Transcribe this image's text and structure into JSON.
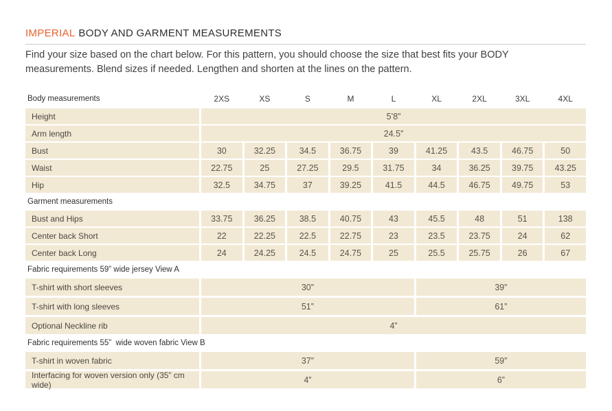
{
  "page": {
    "brand": "IMPERIAL",
    "title": "BODY AND GARMENT MEASUREMENTS",
    "subtitle": [
      "Find your size based on the chart below. For this pattern, you should choose the size that best fits your BODY",
      "measurements. Blend sizes if needed. Lengthen and shorten at the lines on the pattern."
    ]
  },
  "colors": {
    "accent_orange": "#e8612c",
    "row_background": "#f2e9d5",
    "text_dark": "#2e2e2e",
    "text_body": "#3f3f3f",
    "divider_gray": "#cccccc"
  },
  "table": {
    "header": {
      "label": "Body measurements",
      "sizes": [
        "2XS",
        "XS",
        "S",
        "M",
        "L",
        "XL",
        "2XL",
        "3XL",
        "4XL"
      ]
    },
    "rows": {
      "height": {
        "label": "Height",
        "value": "5’8”"
      },
      "arm_length": {
        "label": "Arm length",
        "value": "24.5”"
      },
      "bust": {
        "label": "Bust",
        "values": [
          "30",
          "32.25",
          "34.5",
          "36.75",
          "39",
          "41.25",
          "43.5",
          "46.75",
          "50"
        ]
      },
      "waist": {
        "label": "Waist",
        "values": [
          "22.75",
          "25",
          "27.25",
          "29.5",
          "31.75",
          "34",
          "36.25",
          "39.75",
          "43.25"
        ]
      },
      "hip": {
        "label": "Hip",
        "values": [
          "32.5",
          "34.75",
          "37",
          "39.25",
          "41.5",
          "44.5",
          "46.75",
          "49.75",
          "53"
        ]
      },
      "bust_hips": {
        "label": "Bust and Hips",
        "values": [
          "33.75",
          "36.25",
          "38.5",
          "40.75",
          "43",
          "45.5",
          "48",
          "51",
          "138"
        ]
      },
      "cb_short": {
        "label": "Center back Short",
        "values": [
          "22",
          "22.25",
          "22.5",
          "22.75",
          "23",
          "23.5",
          "23.75",
          "24",
          "62"
        ]
      },
      "cb_long": {
        "label": "Center back Long",
        "values": [
          "24",
          "24.25",
          "24.5",
          "24.75",
          "25",
          "25.5",
          "25.75",
          "26",
          "67"
        ]
      },
      "tshirt_short": {
        "label": "T-shirt with short sleeves",
        "left": "30”",
        "right": "39”"
      },
      "tshirt_long": {
        "label": "T-shirt with long sleeves",
        "left": "51”",
        "right": "61”"
      },
      "neckline_rib": {
        "label": "Optional Neckline rib",
        "value": "4”"
      },
      "tshirt_woven": {
        "label": "T-shirt in woven fabric",
        "left": "37”",
        "right": "59”"
      },
      "interfacing": {
        "label": "Interfacing for woven version only (35” cm wide)",
        "left": "4”",
        "right": "6”"
      }
    },
    "sections": {
      "garment": "Garment measurements",
      "fabric_a": "Fabric requirements 59” wide jersey View A",
      "fabric_b": "Fabric requirements 55”  wide woven fabric View B"
    }
  }
}
